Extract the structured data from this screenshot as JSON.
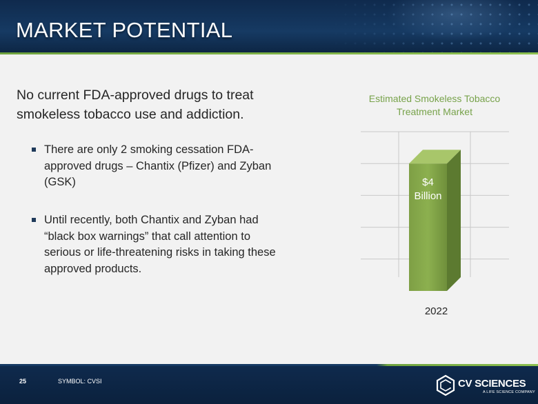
{
  "slide": {
    "title": "MARKET POTENTIAL",
    "lead": "No current FDA-approved drugs to treat smokeless tobacco use and addiction.",
    "bullets": [
      "There are only 2 smoking cessation FDA-approved drugs – Chantix (Pfizer) and Zyban (GSK)",
      "Until recently, both Chantix and Zyban had “black box warnings” that call attention to serious or life-threatening risks in taking these approved products."
    ]
  },
  "chart_data": {
    "type": "bar",
    "title": "Estimated Smokeless Tobacco Treatment Market",
    "categories": [
      "2022"
    ],
    "values": [
      4
    ],
    "data_labels": [
      "$4 Billion"
    ],
    "xlabel": "",
    "ylabel": "",
    "ylim": [
      0,
      5
    ],
    "grid": true,
    "legend": "none",
    "bar_color": "#8cb04f"
  },
  "footer": {
    "page_number": "25",
    "symbol": "SYMBOL: CVSI",
    "logo_text": "CV SCIENCES",
    "logo_tagline": "A LIFE SCIENCE COMPANY"
  },
  "colors": {
    "header_bg": "#163a63",
    "accent_green": "#77a24a",
    "text": "#262626"
  }
}
